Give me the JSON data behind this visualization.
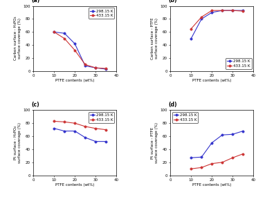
{
  "subplots": [
    {
      "label": "(a)",
      "ylabel": "Carbon surface - H₃PO₄\nsurface coverage (%)",
      "xlabel": "PTFE contents (wt%)",
      "x": [
        10,
        15,
        20,
        25,
        30,
        35
      ],
      "y_blue": [
        60,
        58,
        42,
        8,
        5,
        3
      ],
      "y_red": [
        60,
        50,
        32,
        10,
        5,
        4
      ],
      "ylim": [
        0,
        100
      ],
      "xlim": [
        0,
        40
      ],
      "xticks": [
        0,
        10,
        20,
        30,
        40
      ],
      "yticks": [
        0,
        20,
        40,
        60,
        80,
        100
      ],
      "legend_loc": "upper right"
    },
    {
      "label": "(b)",
      "ylabel": "Carbon surface - PTFE\nsurface coverage (%)",
      "xlabel": "PTFE contents (wt%)",
      "x": [
        10,
        15,
        20,
        25,
        30,
        35
      ],
      "y_blue": [
        50,
        80,
        90,
        93,
        93,
        93
      ],
      "y_red": [
        65,
        83,
        93,
        93,
        93,
        92
      ],
      "ylim": [
        0,
        100
      ],
      "xlim": [
        0,
        40
      ],
      "xticks": [
        0,
        10,
        20,
        30,
        40
      ],
      "yticks": [
        0,
        20,
        40,
        60,
        80,
        100
      ],
      "legend_loc": "lower right"
    },
    {
      "label": "(c)",
      "ylabel": "Pt surface - H₃PO₄\nsurface coverage (%)",
      "xlabel": "PTFE contents (wt%)",
      "x": [
        10,
        15,
        20,
        25,
        30,
        35
      ],
      "y_blue": [
        72,
        68,
        68,
        58,
        52,
        52
      ],
      "y_red": [
        83,
        82,
        80,
        75,
        72,
        70
      ],
      "ylim": [
        0,
        100
      ],
      "xlim": [
        0,
        40
      ],
      "xticks": [
        0,
        10,
        20,
        30,
        40
      ],
      "yticks": [
        0,
        20,
        40,
        60,
        80,
        100
      ],
      "legend_loc": "upper right"
    },
    {
      "label": "(d)",
      "ylabel": "Pt surface - PTFE\nsurface coverage (%)",
      "xlabel": "PTFE contents (wt%)",
      "x": [
        10,
        15,
        20,
        25,
        30,
        35
      ],
      "y_blue": [
        27,
        28,
        50,
        62,
        63,
        68
      ],
      "y_red": [
        10,
        12,
        18,
        20,
        27,
        33
      ],
      "ylim": [
        0,
        100
      ],
      "xlim": [
        0,
        40
      ],
      "xticks": [
        0,
        10,
        20,
        30,
        40
      ],
      "yticks": [
        0,
        20,
        40,
        60,
        80,
        100
      ],
      "legend_loc": "upper left"
    }
  ],
  "color_blue": "#3333CC",
  "color_red": "#CC3333",
  "label_blue": "298.15 K",
  "label_red": "433.15 K",
  "marker": "o",
  "markersize": 2.5,
  "linewidth": 0.8,
  "tick_fontsize": 4.0,
  "label_fontsize": 4.0,
  "legend_fontsize": 4.0,
  "subplot_label_fontsize": 5.5,
  "background_color": "#ffffff"
}
